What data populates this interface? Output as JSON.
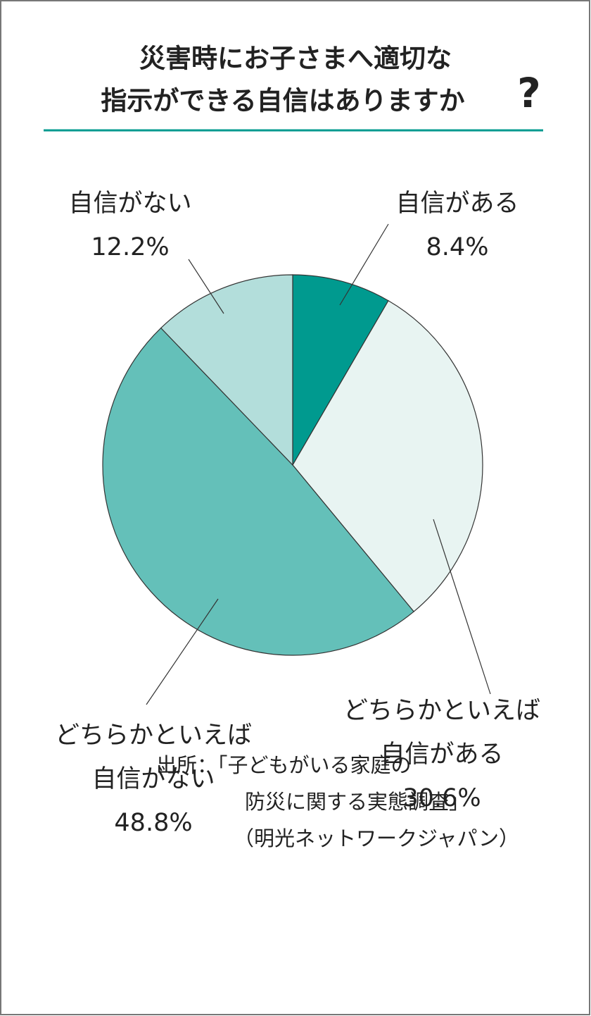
{
  "chart_data": {
    "type": "pie",
    "title_lines": [
      "災害時にお子さまへ適切な",
      "指示ができる自信はありますか"
    ],
    "title_mark": "?",
    "categories": [
      [
        "自信がある"
      ],
      [
        "どちらかといえば",
        "自信がある"
      ],
      [
        "どちらかといえば",
        "自信がない"
      ],
      [
        "自信がない"
      ]
    ],
    "values": [
      8.4,
      30.6,
      48.8,
      12.2
    ],
    "value_labels": [
      "8.4%",
      "30.6%",
      "48.8%",
      "12.2%"
    ],
    "colors": [
      "#009a8f",
      "#e8f4f2",
      "#64c0b9",
      "#b3dedb"
    ],
    "source_lines": [
      "出所：「子どもがいる家庭の",
      "防災に関する実態調査」",
      "（明光ネットワークジャパン）"
    ]
  }
}
